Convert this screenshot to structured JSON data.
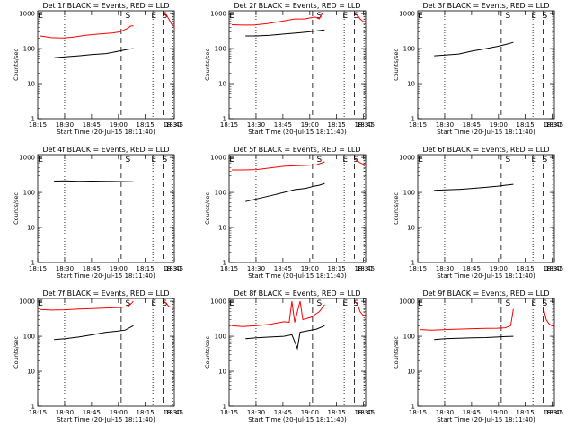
{
  "page": {
    "background": "#ffffff"
  },
  "colors": {
    "events": "#000000",
    "lld": "#ff0000",
    "axis": "#000000"
  },
  "chart_data": [
    {
      "type": "line",
      "title": "Det 1f BLACK = Events, RED = LLD",
      "xlabel": "Start Time (20-Jul-15 18:11:40)",
      "ylabel": "Counts/sec",
      "x_ticklabels": [
        "18:15",
        "18:30",
        "18:45",
        "19:00",
        "18:15",
        "18:30",
        "18:45"
      ],
      "y_ticklabels": [
        "1",
        "10",
        "100",
        "1000"
      ],
      "yscale": "log",
      "ylim": [
        1,
        1200
      ],
      "markers": [
        "E",
        "S",
        "E",
        "S"
      ],
      "series": [
        {
          "color": "#000000",
          "points": [
            [
              0.12,
              55
            ],
            [
              0.2,
              58
            ],
            [
              0.3,
              62
            ],
            [
              0.4,
              68
            ],
            [
              0.5,
              72
            ],
            [
              0.6,
              85
            ],
            [
              0.66,
              95
            ],
            [
              0.7,
              100
            ]
          ]
        },
        {
          "color": "#ff0000",
          "points": [
            [
              0.02,
              230
            ],
            [
              0.1,
              205
            ],
            [
              0.18,
              200
            ],
            [
              0.25,
              210
            ],
            [
              0.35,
              240
            ],
            [
              0.45,
              260
            ],
            [
              0.55,
              280
            ],
            [
              0.6,
              300
            ],
            [
              0.66,
              380
            ],
            [
              0.68,
              440
            ],
            [
              0.7,
              450
            ]
          ]
        },
        {
          "color": "#ff0000",
          "points": [
            [
              0.92,
              1000
            ],
            [
              0.94,
              950
            ],
            [
              0.96,
              700
            ],
            [
              0.98,
              500
            ],
            [
              1.02,
              420
            ],
            [
              1.06,
              380
            ]
          ]
        }
      ]
    },
    {
      "type": "line",
      "title": "Det 2f BLACK = Events, RED = LLD",
      "xlabel": "Start Time (20-Jul-15 18:11:40)",
      "ylabel": "Counts/sec",
      "x_ticklabels": [
        "18:15",
        "18:30",
        "18:45",
        "19:00",
        "18:15",
        "18:30",
        "18:45"
      ],
      "y_ticklabels": [
        "1",
        "10",
        "100",
        "1000"
      ],
      "yscale": "log",
      "ylim": [
        1,
        1200
      ],
      "markers": [
        "E",
        "S",
        "E",
        "S"
      ],
      "series": [
        {
          "color": "#000000",
          "points": [
            [
              0.12,
              230
            ],
            [
              0.2,
              230
            ],
            [
              0.3,
              240
            ],
            [
              0.4,
              260
            ],
            [
              0.5,
              280
            ],
            [
              0.58,
              300
            ],
            [
              0.64,
              320
            ],
            [
              0.7,
              340
            ]
          ]
        },
        {
          "color": "#ff0000",
          "points": [
            [
              0.02,
              480
            ],
            [
              0.1,
              470
            ],
            [
              0.18,
              470
            ],
            [
              0.28,
              520
            ],
            [
              0.38,
              600
            ],
            [
              0.48,
              700
            ],
            [
              0.55,
              700
            ],
            [
              0.63,
              800
            ],
            [
              0.66,
              700
            ],
            [
              0.68,
              1000
            ],
            [
              0.69,
              900
            ]
          ]
        },
        {
          "color": "#ff0000",
          "points": [
            [
              0.92,
              1000
            ],
            [
              0.94,
              900
            ],
            [
              0.96,
              700
            ],
            [
              0.98,
              600
            ],
            [
              1.02,
              580
            ],
            [
              1.06,
              560
            ]
          ]
        }
      ]
    },
    {
      "type": "line",
      "title": "Det 3f BLACK = Events, RED = LLD",
      "xlabel": "Start Time (20-Jul-15 18:11:40)",
      "ylabel": "Counts/sec",
      "x_ticklabels": [
        "18:15",
        "18:30",
        "18:45",
        "19:00",
        "18:15",
        "18:30",
        "18:45"
      ],
      "y_ticklabels": [
        "1",
        "10",
        "100",
        "1000"
      ],
      "yscale": "log",
      "ylim": [
        1,
        1200
      ],
      "markers": [
        "E",
        "S",
        "E",
        "S"
      ],
      "series": [
        {
          "color": "#000000",
          "points": [
            [
              0.12,
              62
            ],
            [
              0.2,
              65
            ],
            [
              0.3,
              70
            ],
            [
              0.4,
              85
            ],
            [
              0.5,
              100
            ],
            [
              0.58,
              115
            ],
            [
              0.64,
              130
            ],
            [
              0.7,
              150
            ]
          ]
        }
      ]
    },
    {
      "type": "line",
      "title": "Det 4f BLACK = Events, RED = LLD",
      "xlabel": "Start Time (20-Jul-15 18:11:40)",
      "ylabel": "Counts/sec",
      "x_ticklabels": [
        "18:15",
        "18:30",
        "18:45",
        "19:00",
        "18:15",
        "18:30",
        "18:45"
      ],
      "y_ticklabels": [
        "1",
        "10",
        "100",
        "1000"
      ],
      "yscale": "log",
      "ylim": [
        1,
        1200
      ],
      "markers": [
        "E",
        "S",
        "E",
        "S"
      ],
      "series": [
        {
          "color": "#000000",
          "points": [
            [
              0.12,
              210
            ],
            [
              0.2,
              212
            ],
            [
              0.3,
              208
            ],
            [
              0.4,
              210
            ],
            [
              0.5,
              206
            ],
            [
              0.6,
              204
            ],
            [
              0.7,
              202
            ]
          ]
        }
      ]
    },
    {
      "type": "line",
      "title": "Det 5f BLACK = Events, RED = LLD",
      "xlabel": "Start Time (20-Jul-15 18:11:40)",
      "ylabel": "Counts/sec",
      "x_ticklabels": [
        "18:15",
        "18:30",
        "18:45",
        "19:00",
        "18:15",
        "18:30",
        "18:45"
      ],
      "y_ticklabels": [
        "1",
        "10",
        "100",
        "1000"
      ],
      "yscale": "log",
      "ylim": [
        1,
        1200
      ],
      "markers": [
        "E",
        "S",
        "E",
        "S"
      ],
      "series": [
        {
          "color": "#000000",
          "points": [
            [
              0.12,
              55
            ],
            [
              0.2,
              65
            ],
            [
              0.3,
              80
            ],
            [
              0.4,
              100
            ],
            [
              0.48,
              120
            ],
            [
              0.56,
              130
            ],
            [
              0.62,
              150
            ],
            [
              0.66,
              160
            ],
            [
              0.7,
              180
            ]
          ]
        },
        {
          "color": "#ff0000",
          "points": [
            [
              0.02,
              440
            ],
            [
              0.1,
              440
            ],
            [
              0.2,
              450
            ],
            [
              0.3,
              500
            ],
            [
              0.4,
              560
            ],
            [
              0.5,
              580
            ],
            [
              0.58,
              600
            ],
            [
              0.64,
              620
            ],
            [
              0.68,
              700
            ],
            [
              0.7,
              750
            ]
          ]
        },
        {
          "color": "#ff0000",
          "points": [
            [
              0.92,
              900
            ],
            [
              0.94,
              800
            ],
            [
              0.96,
              700
            ],
            [
              0.98,
              650
            ],
            [
              1.02,
              620
            ],
            [
              1.06,
              600
            ]
          ]
        }
      ]
    },
    {
      "type": "line",
      "title": "Det 6f BLACK = Events, RED = LLD",
      "xlabel": "Start Time (20-Jul-15 18:11:40)",
      "ylabel": "Counts/sec",
      "x_ticklabels": [
        "18:15",
        "18:30",
        "18:45",
        "19:00",
        "18:15",
        "18:30",
        "18:45"
      ],
      "y_ticklabels": [
        "1",
        "10",
        "100",
        "1000"
      ],
      "yscale": "log",
      "ylim": [
        1,
        1200
      ],
      "markers": [
        "E",
        "S",
        "E",
        "S"
      ],
      "series": [
        {
          "color": "#000000",
          "points": [
            [
              0.12,
              115
            ],
            [
              0.2,
              118
            ],
            [
              0.3,
              122
            ],
            [
              0.4,
              130
            ],
            [
              0.5,
              140
            ],
            [
              0.58,
              150
            ],
            [
              0.64,
              160
            ],
            [
              0.7,
              170
            ]
          ]
        }
      ]
    },
    {
      "type": "line",
      "title": "Det 7f BLACK = Events, RED = LLD",
      "xlabel": "Start Time (20-Jul-15 18:11:40)",
      "ylabel": "Counts/sec",
      "x_ticklabels": [
        "18:15",
        "18:30",
        "18:45",
        "19:00",
        "18:15",
        "18:30",
        "18:45"
      ],
      "y_ticklabels": [
        "1",
        "10",
        "100",
        "1000"
      ],
      "yscale": "log",
      "ylim": [
        1,
        1200
      ],
      "markers": [
        "E",
        "S",
        "E",
        "S"
      ],
      "series": [
        {
          "color": "#000000",
          "points": [
            [
              0.12,
              80
            ],
            [
              0.2,
              85
            ],
            [
              0.3,
              95
            ],
            [
              0.4,
              110
            ],
            [
              0.5,
              130
            ],
            [
              0.58,
              140
            ],
            [
              0.64,
              150
            ],
            [
              0.7,
              200
            ]
          ]
        },
        {
          "color": "#ff0000",
          "points": [
            [
              0.02,
              580
            ],
            [
              0.1,
              560
            ],
            [
              0.2,
              570
            ],
            [
              0.3,
              600
            ],
            [
              0.4,
              620
            ],
            [
              0.5,
              640
            ],
            [
              0.6,
              660
            ],
            [
              0.66,
              700
            ],
            [
              0.69,
              900
            ],
            [
              0.7,
              1000
            ]
          ]
        },
        {
          "color": "#ff0000",
          "points": [
            [
              0.92,
              1000
            ],
            [
              0.94,
              900
            ],
            [
              0.96,
              700
            ],
            [
              0.98,
              680
            ],
            [
              1.02,
              660
            ],
            [
              1.06,
              640
            ]
          ]
        }
      ]
    },
    {
      "type": "line",
      "title": "Det 8f BLACK = Events, RED = LLD",
      "xlabel": "Start Time (20-Jul-15 18:11:40)",
      "ylabel": "Counts/sec",
      "x_ticklabels": [
        "18:15",
        "18:30",
        "18:45",
        "19:00",
        "18:15",
        "18:30",
        "18:45"
      ],
      "y_ticklabels": [
        "1",
        "10",
        "100",
        "1000"
      ],
      "yscale": "log",
      "ylim": [
        1,
        1200
      ],
      "markers": [
        "E",
        "S",
        "E",
        "S"
      ],
      "series": [
        {
          "color": "#000000",
          "points": [
            [
              0.12,
              85
            ],
            [
              0.2,
              90
            ],
            [
              0.3,
              95
            ],
            [
              0.4,
              100
            ],
            [
              0.46,
              110
            ],
            [
              0.5,
              45
            ],
            [
              0.52,
              130
            ],
            [
              0.56,
              140
            ],
            [
              0.6,
              150
            ],
            [
              0.64,
              160
            ],
            [
              0.7,
              200
            ]
          ]
        },
        {
          "color": "#ff0000",
          "points": [
            [
              0.02,
              200
            ],
            [
              0.1,
              190
            ],
            [
              0.2,
              200
            ],
            [
              0.3,
              220
            ],
            [
              0.4,
              260
            ],
            [
              0.44,
              250
            ],
            [
              0.46,
              1000
            ],
            [
              0.48,
              250
            ],
            [
              0.52,
              1000
            ],
            [
              0.54,
              300
            ],
            [
              0.6,
              350
            ],
            [
              0.66,
              500
            ],
            [
              0.7,
              800
            ]
          ]
        },
        {
          "color": "#ff0000",
          "points": [
            [
              0.92,
              1000
            ],
            [
              0.94,
              800
            ],
            [
              0.96,
              500
            ],
            [
              0.98,
              400
            ],
            [
              1.02,
              380
            ],
            [
              1.06,
              360
            ]
          ]
        }
      ]
    },
    {
      "type": "line",
      "title": "Det 9f BLACK = Events, RED = LLD",
      "xlabel": "Start Time (20-Jul-15 18:11:40)",
      "ylabel": "Counts/sec",
      "x_ticklabels": [
        "18:15",
        "18:30",
        "18:45",
        "19:00",
        "18:15",
        "18:30",
        "18:45"
      ],
      "y_ticklabels": [
        "1",
        "10",
        "100",
        "1000"
      ],
      "yscale": "log",
      "ylim": [
        1,
        1200
      ],
      "markers": [
        "E",
        "S",
        "E",
        "S"
      ],
      "series": [
        {
          "color": "#000000",
          "points": [
            [
              0.12,
              80
            ],
            [
              0.2,
              85
            ],
            [
              0.3,
              88
            ],
            [
              0.4,
              90
            ],
            [
              0.5,
              92
            ],
            [
              0.58,
              95
            ],
            [
              0.64,
              98
            ],
            [
              0.7,
              100
            ]
          ]
        },
        {
          "color": "#ff0000",
          "points": [
            [
              0.02,
              155
            ],
            [
              0.1,
              150
            ],
            [
              0.2,
              155
            ],
            [
              0.3,
              160
            ],
            [
              0.4,
              165
            ],
            [
              0.5,
              168
            ],
            [
              0.58,
              170
            ],
            [
              0.64,
              175
            ],
            [
              0.68,
              200
            ],
            [
              0.7,
              600
            ]
          ]
        },
        {
          "color": "#ff0000",
          "points": [
            [
              0.92,
              650
            ],
            [
              0.94,
              300
            ],
            [
              0.96,
              230
            ],
            [
              0.98,
              200
            ],
            [
              1.02,
              190
            ],
            [
              1.06,
              180
            ]
          ]
        }
      ]
    }
  ]
}
